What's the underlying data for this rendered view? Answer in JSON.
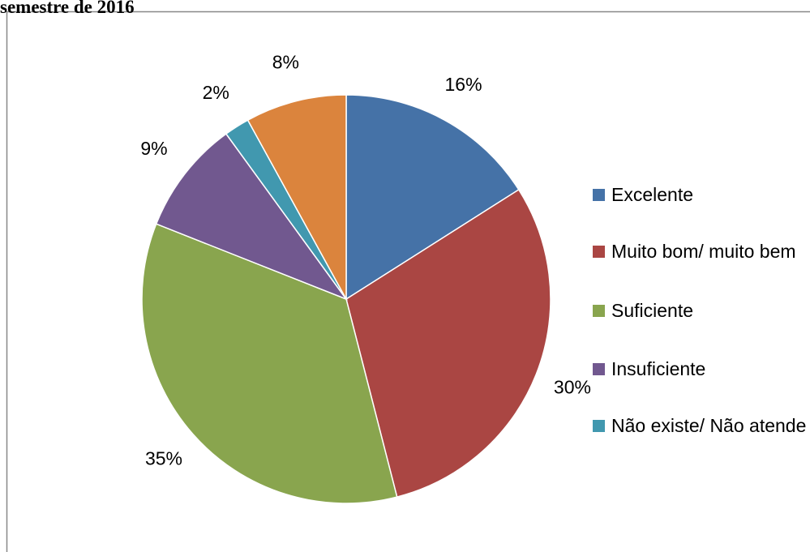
{
  "chart_data": {
    "type": "pie",
    "title": "semestre de 2016",
    "categories": [
      "Excelente",
      "Muito bom/ muito bem",
      "Suficiente",
      "Insuficiente",
      "Não existe/ Não atende",
      null
    ],
    "values": [
      16,
      30,
      35,
      9,
      2,
      8
    ],
    "value_labels": [
      "16%",
      "30%",
      "35%",
      "9%",
      "2%",
      "8%"
    ],
    "colors": [
      "#4572a7",
      "#aa4643",
      "#89a54e",
      "#71588f",
      "#4198af",
      "#db843d"
    ],
    "legend": "right"
  }
}
